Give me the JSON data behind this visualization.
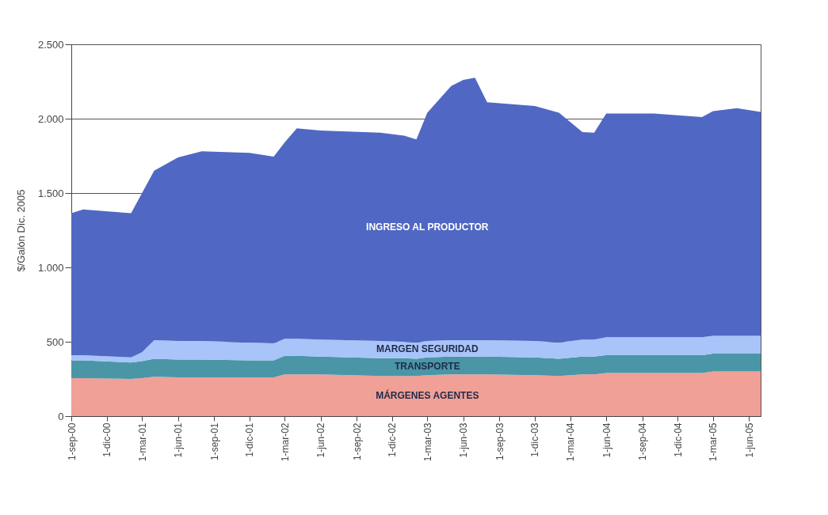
{
  "chart_data": {
    "type": "area",
    "stacked": true,
    "ylabel": "$/Galón  Dic. 2005",
    "x": [
      "2000-09",
      "2000-10",
      "2001-02",
      "2001-03",
      "2001-04",
      "2001-06",
      "2001-08",
      "2001-12",
      "2002-02",
      "2002-03",
      "2002-04",
      "2002-06",
      "2002-11",
      "2003-01",
      "2003-02",
      "2003-03",
      "2003-05",
      "2003-06",
      "2003-07",
      "2003-08",
      "2003-12",
      "2004-02",
      "2004-04",
      "2004-05",
      "2004-06",
      "2004-10",
      "2005-02",
      "2005-03",
      "2005-05",
      "2005-07"
    ],
    "series": [
      {
        "name": "MÁRGENES AGENTES",
        "color": "#f0a096",
        "values": [
          255,
          255,
          250,
          255,
          265,
          260,
          260,
          260,
          260,
          280,
          280,
          280,
          270,
          270,
          270,
          275,
          280,
          280,
          280,
          280,
          275,
          270,
          280,
          280,
          290,
          290,
          290,
          300,
          300,
          300
        ]
      },
      {
        "name": "TRANSPORTE",
        "color": "#4a96a6",
        "values": [
          120,
          120,
          110,
          115,
          120,
          120,
          120,
          115,
          115,
          125,
          125,
          120,
          120,
          120,
          115,
          120,
          120,
          120,
          120,
          120,
          120,
          115,
          120,
          120,
          120,
          120,
          120,
          120,
          120,
          120
        ]
      },
      {
        "name": "MARGEN SEGURIDAD",
        "color": "#a8c4f8",
        "values": [
          35,
          35,
          35,
          60,
          125,
          125,
          125,
          120,
          115,
          115,
          115,
          115,
          115,
          110,
          110,
          110,
          110,
          110,
          110,
          110,
          110,
          110,
          115,
          115,
          120,
          120,
          120,
          120,
          120,
          120
        ]
      },
      {
        "name": "INGRESO AL PRODUCTOR",
        "color": "#5068c4",
        "values": [
          955,
          980,
          970,
          1070,
          1140,
          1235,
          1275,
          1275,
          1255,
          1320,
          1415,
          1405,
          1400,
          1385,
          1365,
          1535,
          1710,
          1750,
          1765,
          1600,
          1580,
          1545,
          1395,
          1390,
          1505,
          1505,
          1480,
          1510,
          1530,
          1505
        ]
      }
    ],
    "xlim": [
      "2000-09",
      "2005-07"
    ],
    "xticks": [
      {
        "value": "2000-09",
        "label": "1-sep-00"
      },
      {
        "value": "2000-12",
        "label": "1-dic-00"
      },
      {
        "value": "2001-03",
        "label": "1-mar-01"
      },
      {
        "value": "2001-06",
        "label": "1-jun-01"
      },
      {
        "value": "2001-09",
        "label": "1-sep-01"
      },
      {
        "value": "2001-12",
        "label": "1-dic-01"
      },
      {
        "value": "2002-03",
        "label": "1-mar-02"
      },
      {
        "value": "2002-06",
        "label": "1-jun-02"
      },
      {
        "value": "2002-09",
        "label": "1-sep-02"
      },
      {
        "value": "2002-12",
        "label": "1-dic-02"
      },
      {
        "value": "2003-03",
        "label": "1-mar-03"
      },
      {
        "value": "2003-06",
        "label": "1-jun-03"
      },
      {
        "value": "2003-09",
        "label": "1-sep-03"
      },
      {
        "value": "2003-12",
        "label": "1-dic-03"
      },
      {
        "value": "2004-03",
        "label": "1-mar-04"
      },
      {
        "value": "2004-06",
        "label": "1-jun-04"
      },
      {
        "value": "2004-09",
        "label": "1-sep-04"
      },
      {
        "value": "2004-12",
        "label": "1-dic-04"
      },
      {
        "value": "2005-03",
        "label": "1-mar-05"
      },
      {
        "value": "2005-06",
        "label": "1-jun-05"
      }
    ],
    "ylim": [
      0,
      2500
    ],
    "yticks": [
      0,
      500,
      {
        "value": 1000,
        "label": "1.000"
      },
      {
        "value": 1500,
        "label": "1.500"
      },
      {
        "value": 2000,
        "label": "2.000"
      },
      {
        "value": 2500,
        "label": "2.500"
      }
    ],
    "grid": "y",
    "legend": false
  }
}
